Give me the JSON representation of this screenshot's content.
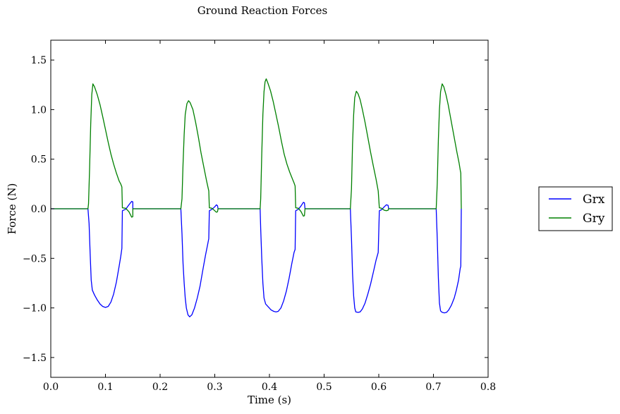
{
  "chart_data": {
    "type": "line",
    "title": "Ground Reaction Forces",
    "xlabel": "Time (s)",
    "ylabel": "Force (N)",
    "xlim": [
      0.0,
      0.8
    ],
    "ylim": [
      -1.7,
      1.7
    ],
    "xticks": [
      0.0,
      0.1,
      0.2,
      0.3,
      0.4,
      0.5,
      0.6,
      0.7,
      0.8
    ],
    "xtick_labels": [
      "0.0",
      "0.1",
      "0.2",
      "0.3",
      "0.4",
      "0.5",
      "0.6",
      "0.7",
      "0.8"
    ],
    "yticks": [
      -1.5,
      -1.0,
      -0.5,
      0.0,
      0.5,
      1.0,
      1.5
    ],
    "ytick_labels": [
      "−1.5",
      "−1.0",
      "−0.5",
      "0.0",
      "0.5",
      "1.0",
      "1.5"
    ],
    "grid": false,
    "legend_position": "outside-right",
    "series": [
      {
        "name": "Grx",
        "color": "#0000ff",
        "points": [
          [
            0.0,
            0
          ],
          [
            0.068,
            0
          ],
          [
            0.07,
            -0.15
          ],
          [
            0.072,
            -0.45
          ],
          [
            0.074,
            -0.72
          ],
          [
            0.076,
            -0.82
          ],
          [
            0.08,
            -0.87
          ],
          [
            0.085,
            -0.92
          ],
          [
            0.09,
            -0.96
          ],
          [
            0.095,
            -0.985
          ],
          [
            0.1,
            -0.995
          ],
          [
            0.105,
            -0.985
          ],
          [
            0.11,
            -0.94
          ],
          [
            0.115,
            -0.86
          ],
          [
            0.12,
            -0.74
          ],
          [
            0.125,
            -0.58
          ],
          [
            0.128,
            -0.48
          ],
          [
            0.13,
            -0.4
          ],
          [
            0.131,
            -0.02
          ],
          [
            0.137,
            -0.005
          ],
          [
            0.143,
            0.04
          ],
          [
            0.148,
            0.075
          ],
          [
            0.15,
            0.07
          ],
          [
            0.15,
            0
          ],
          [
            0.238,
            0
          ],
          [
            0.24,
            -0.25
          ],
          [
            0.242,
            -0.55
          ],
          [
            0.244,
            -0.75
          ],
          [
            0.246,
            -0.9
          ],
          [
            0.248,
            -1.0
          ],
          [
            0.251,
            -1.07
          ],
          [
            0.254,
            -1.09
          ],
          [
            0.258,
            -1.07
          ],
          [
            0.263,
            -1.0
          ],
          [
            0.268,
            -0.9
          ],
          [
            0.273,
            -0.78
          ],
          [
            0.278,
            -0.62
          ],
          [
            0.283,
            -0.47
          ],
          [
            0.287,
            -0.36
          ],
          [
            0.289,
            -0.3
          ],
          [
            0.29,
            -0.02
          ],
          [
            0.295,
            -0.005
          ],
          [
            0.3,
            0.02
          ],
          [
            0.303,
            0.04
          ],
          [
            0.305,
            0.03
          ],
          [
            0.306,
            0
          ],
          [
            0.383,
            0
          ],
          [
            0.384,
            -0.2
          ],
          [
            0.386,
            -0.5
          ],
          [
            0.388,
            -0.75
          ],
          [
            0.39,
            -0.9
          ],
          [
            0.393,
            -0.96
          ],
          [
            0.398,
            -0.99
          ],
          [
            0.403,
            -1.02
          ],
          [
            0.408,
            -1.035
          ],
          [
            0.412,
            -1.04
          ],
          [
            0.416,
            -1.035
          ],
          [
            0.421,
            -1.0
          ],
          [
            0.426,
            -0.93
          ],
          [
            0.431,
            -0.83
          ],
          [
            0.436,
            -0.7
          ],
          [
            0.441,
            -0.55
          ],
          [
            0.445,
            -0.44
          ],
          [
            0.447,
            -0.41
          ],
          [
            0.448,
            -0.02
          ],
          [
            0.453,
            -0.005
          ],
          [
            0.458,
            0.03
          ],
          [
            0.462,
            0.065
          ],
          [
            0.464,
            0.06
          ],
          [
            0.465,
            0
          ],
          [
            0.548,
            0
          ],
          [
            0.55,
            -0.3
          ],
          [
            0.552,
            -0.65
          ],
          [
            0.554,
            -0.88
          ],
          [
            0.556,
            -1.0
          ],
          [
            0.558,
            -1.04
          ],
          [
            0.562,
            -1.045
          ],
          [
            0.566,
            -1.04
          ],
          [
            0.57,
            -1.01
          ],
          [
            0.575,
            -0.95
          ],
          [
            0.58,
            -0.86
          ],
          [
            0.585,
            -0.76
          ],
          [
            0.59,
            -0.64
          ],
          [
            0.595,
            -0.52
          ],
          [
            0.599,
            -0.44
          ],
          [
            0.601,
            -0.02
          ],
          [
            0.605,
            -0.01
          ],
          [
            0.61,
            0.02
          ],
          [
            0.614,
            0.04
          ],
          [
            0.617,
            0.035
          ],
          [
            0.618,
            0
          ],
          [
            0.705,
            0
          ],
          [
            0.707,
            -0.3
          ],
          [
            0.709,
            -0.7
          ],
          [
            0.711,
            -0.95
          ],
          [
            0.713,
            -1.03
          ],
          [
            0.716,
            -1.045
          ],
          [
            0.72,
            -1.05
          ],
          [
            0.724,
            -1.045
          ],
          [
            0.728,
            -1.02
          ],
          [
            0.733,
            -0.97
          ],
          [
            0.738,
            -0.9
          ],
          [
            0.742,
            -0.82
          ],
          [
            0.746,
            -0.72
          ],
          [
            0.749,
            -0.6
          ],
          [
            0.75,
            -0.58
          ],
          [
            0.751,
            0
          ]
        ]
      },
      {
        "name": "Gry",
        "color": "#008000",
        "points": [
          [
            0.0,
            0
          ],
          [
            0.068,
            0
          ],
          [
            0.069,
            0.05
          ],
          [
            0.071,
            0.4
          ],
          [
            0.073,
            0.85
          ],
          [
            0.075,
            1.15
          ],
          [
            0.077,
            1.26
          ],
          [
            0.08,
            1.23
          ],
          [
            0.085,
            1.15
          ],
          [
            0.09,
            1.05
          ],
          [
            0.095,
            0.93
          ],
          [
            0.1,
            0.8
          ],
          [
            0.105,
            0.67
          ],
          [
            0.11,
            0.55
          ],
          [
            0.115,
            0.45
          ],
          [
            0.12,
            0.36
          ],
          [
            0.125,
            0.28
          ],
          [
            0.128,
            0.25
          ],
          [
            0.13,
            0.22
          ],
          [
            0.131,
            0.01
          ],
          [
            0.137,
            0.005
          ],
          [
            0.143,
            -0.03
          ],
          [
            0.148,
            -0.085
          ],
          [
            0.15,
            -0.08
          ],
          [
            0.15,
            0
          ],
          [
            0.238,
            0
          ],
          [
            0.24,
            0.1
          ],
          [
            0.242,
            0.45
          ],
          [
            0.244,
            0.75
          ],
          [
            0.246,
            0.95
          ],
          [
            0.249,
            1.06
          ],
          [
            0.252,
            1.09
          ],
          [
            0.255,
            1.07
          ],
          [
            0.26,
            1.0
          ],
          [
            0.265,
            0.87
          ],
          [
            0.27,
            0.72
          ],
          [
            0.275,
            0.56
          ],
          [
            0.28,
            0.42
          ],
          [
            0.285,
            0.28
          ],
          [
            0.289,
            0.18
          ],
          [
            0.29,
            0.01
          ],
          [
            0.295,
            0.005
          ],
          [
            0.3,
            -0.02
          ],
          [
            0.303,
            -0.035
          ],
          [
            0.305,
            -0.03
          ],
          [
            0.306,
            0
          ],
          [
            0.383,
            0
          ],
          [
            0.384,
            0.1
          ],
          [
            0.386,
            0.55
          ],
          [
            0.388,
            0.95
          ],
          [
            0.39,
            1.18
          ],
          [
            0.392,
            1.28
          ],
          [
            0.394,
            1.31
          ],
          [
            0.397,
            1.27
          ],
          [
            0.402,
            1.19
          ],
          [
            0.407,
            1.08
          ],
          [
            0.412,
            0.95
          ],
          [
            0.417,
            0.82
          ],
          [
            0.422,
            0.68
          ],
          [
            0.427,
            0.55
          ],
          [
            0.432,
            0.45
          ],
          [
            0.437,
            0.37
          ],
          [
            0.442,
            0.3
          ],
          [
            0.445,
            0.26
          ],
          [
            0.447,
            0.23
          ],
          [
            0.448,
            0.01
          ],
          [
            0.453,
            0.005
          ],
          [
            0.458,
            -0.03
          ],
          [
            0.462,
            -0.075
          ],
          [
            0.464,
            -0.07
          ],
          [
            0.465,
            0
          ],
          [
            0.548,
            0
          ],
          [
            0.55,
            0.2
          ],
          [
            0.552,
            0.65
          ],
          [
            0.554,
            0.95
          ],
          [
            0.556,
            1.12
          ],
          [
            0.559,
            1.185
          ],
          [
            0.562,
            1.16
          ],
          [
            0.566,
            1.1
          ],
          [
            0.57,
            1.0
          ],
          [
            0.575,
            0.87
          ],
          [
            0.58,
            0.72
          ],
          [
            0.585,
            0.57
          ],
          [
            0.59,
            0.43
          ],
          [
            0.595,
            0.3
          ],
          [
            0.599,
            0.18
          ],
          [
            0.601,
            0.01
          ],
          [
            0.605,
            0.005
          ],
          [
            0.61,
            -0.015
          ],
          [
            0.614,
            -0.02
          ],
          [
            0.617,
            -0.015
          ],
          [
            0.618,
            0
          ],
          [
            0.705,
            0
          ],
          [
            0.707,
            0.25
          ],
          [
            0.709,
            0.7
          ],
          [
            0.711,
            1.0
          ],
          [
            0.713,
            1.18
          ],
          [
            0.716,
            1.26
          ],
          [
            0.719,
            1.23
          ],
          [
            0.723,
            1.15
          ],
          [
            0.727,
            1.05
          ],
          [
            0.731,
            0.93
          ],
          [
            0.735,
            0.81
          ],
          [
            0.739,
            0.69
          ],
          [
            0.743,
            0.57
          ],
          [
            0.747,
            0.46
          ],
          [
            0.749,
            0.39
          ],
          [
            0.75,
            0.36
          ],
          [
            0.751,
            0
          ]
        ]
      }
    ]
  }
}
